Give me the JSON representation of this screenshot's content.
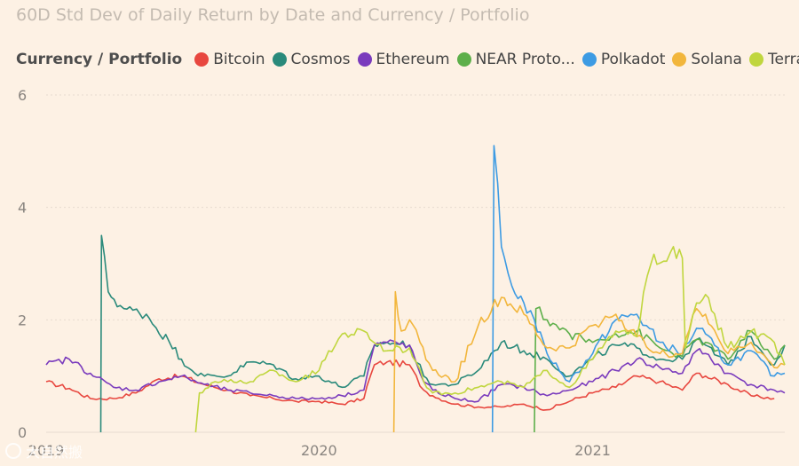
{
  "chart_data": {
    "type": "line",
    "title": "60D Std Dev of Daily Return by Date and Currency / Portfolio",
    "legend_title": "Currency / Portfolio",
    "xlabel": "",
    "ylabel": "",
    "ylim": [
      0,
      6
    ],
    "yticks": [
      0,
      2,
      4,
      6
    ],
    "xticks": [
      "2019",
      "2020",
      "2021"
    ],
    "x_range": [
      "2019-01-01",
      "2021-09-15"
    ],
    "grid": true,
    "legend_position": "top",
    "series": [
      {
        "name": "Bitcoin",
        "color": "#e8473f",
        "points": [
          [
            "2019-01-01",
            0.9
          ],
          [
            "2019-02-01",
            0.78
          ],
          [
            "2019-03-01",
            0.6
          ],
          [
            "2019-04-01",
            0.6
          ],
          [
            "2019-05-01",
            0.7
          ],
          [
            "2019-06-01",
            0.95
          ],
          [
            "2019-07-01",
            1.0
          ],
          [
            "2019-08-01",
            0.85
          ],
          [
            "2019-09-01",
            0.75
          ],
          [
            "2019-10-01",
            0.65
          ],
          [
            "2019-11-01",
            0.6
          ],
          [
            "2019-12-01",
            0.55
          ],
          [
            "2020-01-01",
            0.55
          ],
          [
            "2020-02-01",
            0.5
          ],
          [
            "2020-03-01",
            0.6
          ],
          [
            "2020-03-15",
            1.2
          ],
          [
            "2020-04-01",
            1.25
          ],
          [
            "2020-05-01",
            1.2
          ],
          [
            "2020-05-20",
            0.75
          ],
          [
            "2020-06-01",
            0.65
          ],
          [
            "2020-07-01",
            0.5
          ],
          [
            "2020-08-01",
            0.45
          ],
          [
            "2020-09-01",
            0.45
          ],
          [
            "2020-10-01",
            0.5
          ],
          [
            "2020-11-01",
            0.4
          ],
          [
            "2020-12-01",
            0.55
          ],
          [
            "2021-01-01",
            0.7
          ],
          [
            "2021-02-01",
            0.8
          ],
          [
            "2021-03-01",
            1.0
          ],
          [
            "2021-04-01",
            0.9
          ],
          [
            "2021-05-01",
            0.75
          ],
          [
            "2021-05-20",
            1.05
          ],
          [
            "2021-06-01",
            1.0
          ],
          [
            "2021-07-01",
            0.85
          ],
          [
            "2021-08-01",
            0.65
          ],
          [
            "2021-09-01",
            0.6
          ]
        ]
      },
      {
        "name": "Cosmos",
        "color": "#2a8a7b",
        "points": [
          [
            "2019-03-15",
            0.0
          ],
          [
            "2019-03-16",
            3.5
          ],
          [
            "2019-03-25",
            2.5
          ],
          [
            "2019-04-15",
            2.2
          ],
          [
            "2019-05-15",
            2.1
          ],
          [
            "2019-06-15",
            1.6
          ],
          [
            "2019-07-01",
            1.3
          ],
          [
            "2019-07-15",
            1.1
          ],
          [
            "2019-08-01",
            1.0
          ],
          [
            "2019-09-01",
            1.0
          ],
          [
            "2019-10-01",
            1.25
          ],
          [
            "2019-11-01",
            1.2
          ],
          [
            "2019-12-01",
            0.95
          ],
          [
            "2020-01-01",
            1.0
          ],
          [
            "2020-02-01",
            0.8
          ],
          [
            "2020-03-01",
            1.0
          ],
          [
            "2020-03-15",
            1.55
          ],
          [
            "2020-04-01",
            1.6
          ],
          [
            "2020-05-01",
            1.55
          ],
          [
            "2020-05-20",
            1.0
          ],
          [
            "2020-06-01",
            0.85
          ],
          [
            "2020-07-01",
            0.85
          ],
          [
            "2020-08-01",
            1.1
          ],
          [
            "2020-09-01",
            1.6
          ],
          [
            "2020-10-01",
            1.45
          ],
          [
            "2020-11-01",
            1.3
          ],
          [
            "2020-12-01",
            1.0
          ],
          [
            "2021-01-01",
            1.3
          ],
          [
            "2021-02-01",
            1.55
          ],
          [
            "2021-03-01",
            1.5
          ],
          [
            "2021-04-01",
            1.3
          ],
          [
            "2021-05-01",
            1.3
          ],
          [
            "2021-05-20",
            1.65
          ],
          [
            "2021-06-01",
            1.55
          ],
          [
            "2021-07-01",
            1.2
          ],
          [
            "2021-08-01",
            1.7
          ],
          [
            "2021-09-01",
            1.2
          ],
          [
            "2021-09-15",
            1.55
          ]
        ]
      },
      {
        "name": "Ethereum",
        "color": "#7a3bbd",
        "points": [
          [
            "2019-01-01",
            1.2
          ],
          [
            "2019-02-01",
            1.3
          ],
          [
            "2019-03-01",
            1.05
          ],
          [
            "2019-04-01",
            0.8
          ],
          [
            "2019-05-01",
            0.75
          ],
          [
            "2019-06-01",
            0.9
          ],
          [
            "2019-07-01",
            1.0
          ],
          [
            "2019-08-01",
            0.85
          ],
          [
            "2019-09-01",
            0.75
          ],
          [
            "2019-10-01",
            0.7
          ],
          [
            "2019-11-01",
            0.65
          ],
          [
            "2019-12-01",
            0.6
          ],
          [
            "2020-01-01",
            0.6
          ],
          [
            "2020-02-01",
            0.65
          ],
          [
            "2020-03-01",
            0.75
          ],
          [
            "2020-03-15",
            1.55
          ],
          [
            "2020-04-01",
            1.6
          ],
          [
            "2020-05-01",
            1.55
          ],
          [
            "2020-05-20",
            0.9
          ],
          [
            "2020-06-01",
            0.75
          ],
          [
            "2020-07-01",
            0.6
          ],
          [
            "2020-08-01",
            0.55
          ],
          [
            "2020-09-01",
            0.85
          ],
          [
            "2020-10-01",
            0.8
          ],
          [
            "2020-11-01",
            0.65
          ],
          [
            "2020-12-01",
            0.75
          ],
          [
            "2021-01-01",
            0.9
          ],
          [
            "2021-02-01",
            1.1
          ],
          [
            "2021-03-01",
            1.3
          ],
          [
            "2021-04-01",
            1.15
          ],
          [
            "2021-05-01",
            1.05
          ],
          [
            "2021-05-20",
            1.45
          ],
          [
            "2021-06-01",
            1.4
          ],
          [
            "2021-07-01",
            1.05
          ],
          [
            "2021-08-01",
            0.85
          ],
          [
            "2021-09-01",
            0.75
          ],
          [
            "2021-09-15",
            0.7
          ]
        ]
      },
      {
        "name": "NEAR Proto...",
        "color": "#5daf4a",
        "points": [
          [
            "2020-10-15",
            0.0
          ],
          [
            "2020-10-17",
            2.2
          ],
          [
            "2020-11-01",
            2.0
          ],
          [
            "2020-12-01",
            1.75
          ],
          [
            "2021-01-01",
            1.6
          ],
          [
            "2021-02-01",
            1.75
          ],
          [
            "2021-03-01",
            1.8
          ],
          [
            "2021-04-01",
            1.5
          ],
          [
            "2021-05-01",
            1.35
          ],
          [
            "2021-05-20",
            1.65
          ],
          [
            "2021-06-01",
            1.6
          ],
          [
            "2021-07-01",
            1.3
          ],
          [
            "2021-08-01",
            1.8
          ],
          [
            "2021-09-01",
            1.3
          ],
          [
            "2021-09-15",
            1.55
          ]
        ]
      },
      {
        "name": "Polkadot",
        "color": "#3d9be3",
        "points": [
          [
            "2020-08-20",
            0.0
          ],
          [
            "2020-08-22",
            5.1
          ],
          [
            "2020-09-01",
            3.3
          ],
          [
            "2020-09-15",
            2.6
          ],
          [
            "2020-10-01",
            2.3
          ],
          [
            "2020-10-15",
            2.0
          ],
          [
            "2020-11-01",
            1.4
          ],
          [
            "2020-12-01",
            0.9
          ],
          [
            "2021-01-01",
            1.4
          ],
          [
            "2021-02-01",
            2.0
          ],
          [
            "2021-03-01",
            2.1
          ],
          [
            "2021-04-01",
            1.6
          ],
          [
            "2021-05-01",
            1.4
          ],
          [
            "2021-05-20",
            1.85
          ],
          [
            "2021-06-01",
            1.75
          ],
          [
            "2021-07-01",
            1.2
          ],
          [
            "2021-08-01",
            1.45
          ],
          [
            "2021-09-01",
            1.0
          ],
          [
            "2021-09-15",
            1.05
          ]
        ]
      },
      {
        "name": "Solana",
        "color": "#f2b63c",
        "points": [
          [
            "2020-04-10",
            0.0
          ],
          [
            "2020-04-12",
            2.5
          ],
          [
            "2020-04-20",
            1.8
          ],
          [
            "2020-05-01",
            2.0
          ],
          [
            "2020-05-15",
            1.6
          ],
          [
            "2020-06-01",
            1.1
          ],
          [
            "2020-07-01",
            0.9
          ],
          [
            "2020-08-01",
            1.9
          ],
          [
            "2020-09-01",
            2.4
          ],
          [
            "2020-10-01",
            2.1
          ],
          [
            "2020-11-01",
            1.5
          ],
          [
            "2020-12-01",
            1.5
          ],
          [
            "2021-01-01",
            1.9
          ],
          [
            "2021-02-01",
            2.1
          ],
          [
            "2021-03-01",
            1.7
          ],
          [
            "2021-04-01",
            1.4
          ],
          [
            "2021-05-01",
            1.4
          ],
          [
            "2021-05-20",
            2.2
          ],
          [
            "2021-06-01",
            2.1
          ],
          [
            "2021-07-01",
            1.4
          ],
          [
            "2021-08-01",
            1.6
          ],
          [
            "2021-09-01",
            1.15
          ],
          [
            "2021-09-15",
            1.2
          ]
        ]
      },
      {
        "name": "Terra",
        "color": "#c0d63e",
        "points": [
          [
            "2019-07-20",
            0.0
          ],
          [
            "2019-07-25",
            0.7
          ],
          [
            "2019-08-15",
            0.9
          ],
          [
            "2019-09-01",
            0.9
          ],
          [
            "2019-10-01",
            0.9
          ],
          [
            "2019-11-01",
            1.1
          ],
          [
            "2019-12-01",
            0.9
          ],
          [
            "2020-01-01",
            1.1
          ],
          [
            "2020-02-01",
            1.75
          ],
          [
            "2020-03-01",
            1.8
          ],
          [
            "2020-04-01",
            1.45
          ],
          [
            "2020-05-01",
            1.5
          ],
          [
            "2020-05-20",
            0.9
          ],
          [
            "2020-06-01",
            0.7
          ],
          [
            "2020-07-01",
            0.7
          ],
          [
            "2020-08-01",
            0.8
          ],
          [
            "2020-09-01",
            0.9
          ],
          [
            "2020-10-01",
            0.8
          ],
          [
            "2020-11-01",
            1.1
          ],
          [
            "2020-12-01",
            0.8
          ],
          [
            "2021-01-01",
            1.3
          ],
          [
            "2021-02-01",
            1.8
          ],
          [
            "2021-03-01",
            1.7
          ],
          [
            "2021-03-20",
            3.0
          ],
          [
            "2021-04-15",
            3.2
          ],
          [
            "2021-05-01",
            3.1
          ],
          [
            "2021-05-05",
            1.5
          ],
          [
            "2021-05-20",
            2.3
          ],
          [
            "2021-06-01",
            2.45
          ],
          [
            "2021-07-01",
            1.5
          ],
          [
            "2021-08-01",
            1.8
          ],
          [
            "2021-09-01",
            1.6
          ],
          [
            "2021-09-15",
            1.2
          ]
        ]
      }
    ]
  },
  "watermark": {
    "text": "大自然搬",
    "icon": "copyright-circle-icon"
  }
}
